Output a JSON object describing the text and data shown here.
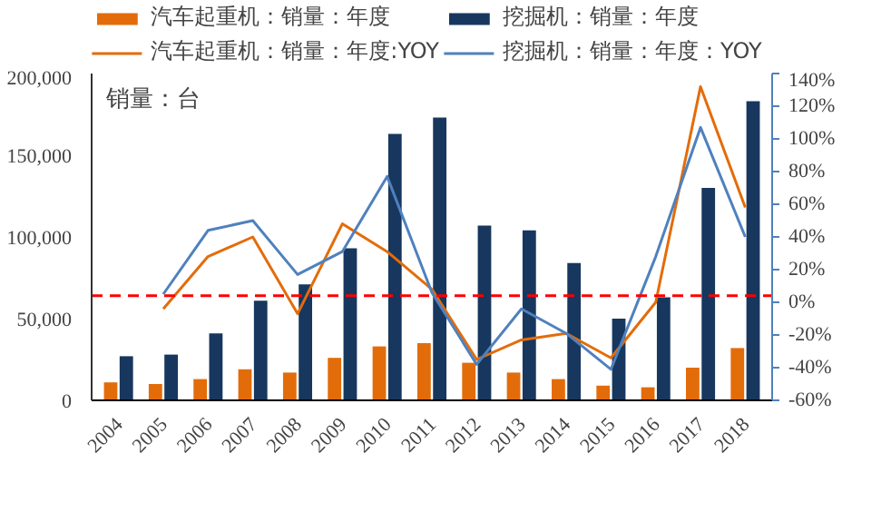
{
  "chart_data": {
    "type": "bar",
    "categories": [
      "2004",
      "2005",
      "2006",
      "2007",
      "2008",
      "2009",
      "2010",
      "2011",
      "2012",
      "2013",
      "2014",
      "2015",
      "2016",
      "2017",
      "2018"
    ],
    "series": [
      {
        "name": "汽车起重机：销量：年度",
        "color": "#e36c0a",
        "values": [
          11000,
          10000,
          13000,
          19000,
          17000,
          26000,
          33000,
          35000,
          23000,
          17000,
          13000,
          9000,
          8000,
          20000,
          32000
        ]
      },
      {
        "name": "挖掘机：销量：年度",
        "color": "#17375e",
        "values": [
          27000,
          28000,
          41000,
          61000,
          71000,
          93000,
          163000,
          173000,
          107000,
          104000,
          84000,
          50000,
          63000,
          130000,
          183000
        ]
      },
      {
        "name": "汽车起重机：销量：年度:YOY",
        "color": "#e36c0a",
        "type": "line",
        "axis": "y2",
        "values": [
          null,
          -4,
          28,
          40,
          -7,
          48,
          31,
          8,
          -35,
          -23,
          -19,
          -34,
          0,
          132,
          58
        ]
      },
      {
        "name": "挖掘机：销量：年度：YOY",
        "color": "#4f81bd",
        "type": "line",
        "axis": "y2",
        "values": [
          null,
          5,
          44,
          50,
          17,
          31,
          77,
          6,
          -38,
          -4,
          -19,
          -41,
          28,
          107,
          40
        ]
      }
    ],
    "ylim": [
      0,
      200000
    ],
    "yticks": [
      0,
      {
        "value": 50000,
        "label": "50,000"
      },
      {
        "value": 100000,
        "label": "100,000"
      },
      {
        "value": 150000,
        "label": "150,000"
      },
      {
        "value": 200000,
        "label": "200,000"
      }
    ],
    "y2lim": [
      -60,
      140
    ],
    "y2ticks": [
      {
        "value": -60,
        "label": "-60%"
      },
      {
        "value": -40,
        "label": "-40%"
      },
      {
        "value": -20,
        "label": "-20%"
      },
      {
        "value": 0,
        "label": "0%"
      },
      {
        "value": 20,
        "label": "20%"
      },
      {
        "value": 40,
        "label": "40%"
      },
      {
        "value": 60,
        "label": "60%"
      },
      {
        "value": 80,
        "label": "80%"
      },
      {
        "value": 100,
        "label": "100%"
      },
      {
        "value": 120,
        "label": "120%"
      },
      {
        "value": 140,
        "label": "140%"
      }
    ],
    "ref_lines": [
      {
        "axis": "y",
        "value": 64000,
        "color": "#ff0000",
        "line_style": "dashed"
      }
    ],
    "annotations": [
      "销量：台"
    ],
    "legend": "top",
    "grid": false
  }
}
